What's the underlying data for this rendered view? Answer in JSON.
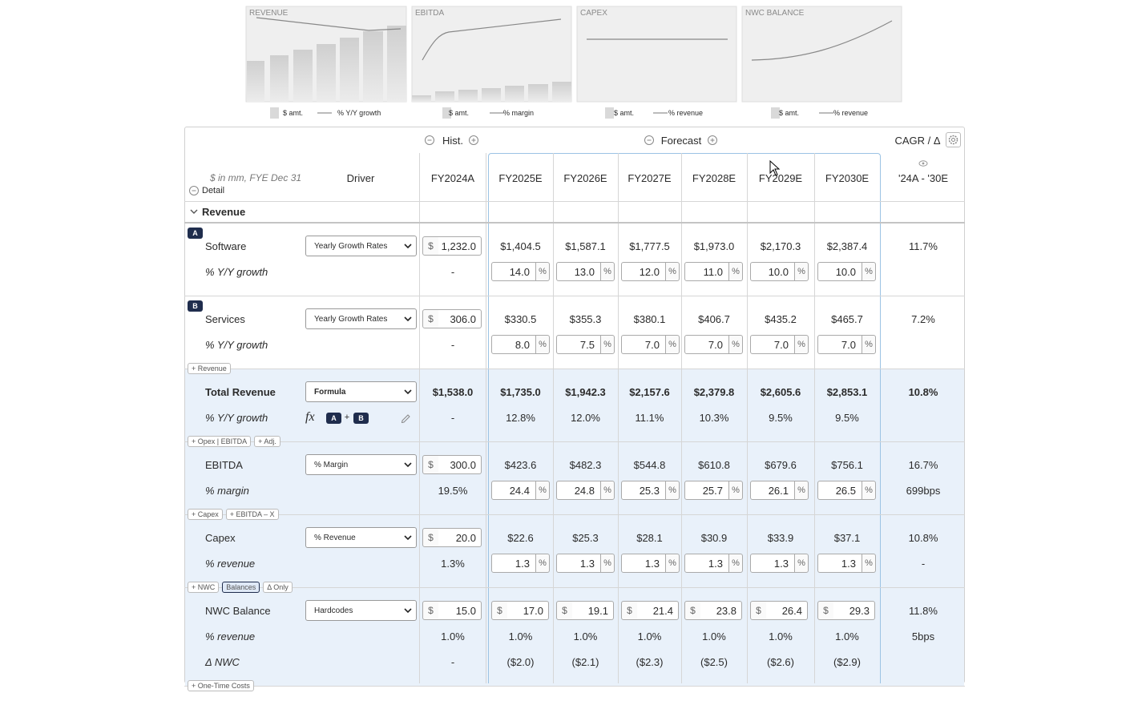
{
  "sparklines": [
    {
      "title": "REVENUE",
      "legend": [
        "$ amt.",
        "% Y/Y growth"
      ]
    },
    {
      "title": "EBITDA",
      "legend": [
        "$ amt.",
        "% margin"
      ]
    },
    {
      "title": "CAPEX",
      "legend": [
        "$ amt.",
        "% revenue"
      ]
    },
    {
      "title": "NWC BALANCE",
      "legend": [
        "$ amt.",
        "% revenue"
      ]
    }
  ],
  "header": {
    "hist": "Hist.",
    "forecast": "Forecast",
    "cagr": "CAGR / Δ",
    "units": "$ in mm, FYE Dec 31",
    "detail": "Detail",
    "driver": "Driver",
    "hist_period": "FY2024A",
    "periods": [
      "FY2025E",
      "FY2026E",
      "FY2027E",
      "FY2028E",
      "FY2029E",
      "FY2030E"
    ],
    "cagr_period": "'24A - '30E"
  },
  "symbols": {
    "currency": "$",
    "percent": "%"
  },
  "section": "Revenue",
  "blocks": [
    {
      "badge": "A",
      "shaded": false,
      "rows": [
        {
          "label": "Software",
          "driver": "Yearly Growth Rates",
          "hist": "1,232.0",
          "hist_input": true,
          "forecast": [
            "$1,404.5",
            "$1,587.1",
            "$1,777.5",
            "$1,973.0",
            "$2,170.3",
            "$2,387.4"
          ],
          "cagr": "11.7%"
        },
        {
          "label": "% Y/Y growth",
          "italic": true,
          "hist": "-",
          "forecast": [
            "14.0",
            "13.0",
            "12.0",
            "11.0",
            "10.0",
            "10.0"
          ],
          "forecast_input": "percent"
        }
      ]
    },
    {
      "badge": "B",
      "shaded": false,
      "rows": [
        {
          "label": "Services",
          "driver": "Yearly Growth Rates",
          "hist": "306.0",
          "hist_input": true,
          "forecast": [
            "$330.5",
            "$355.3",
            "$380.1",
            "$406.7",
            "$435.2",
            "$465.7"
          ],
          "cagr": "7.2%"
        },
        {
          "label": "% Y/Y growth",
          "italic": true,
          "hist": "-",
          "forecast": [
            "8.0",
            "7.5",
            "7.0",
            "7.0",
            "7.0",
            "7.0"
          ],
          "forecast_input": "percent"
        }
      ],
      "tags": [
        {
          "text": "+ Revenue"
        }
      ]
    },
    {
      "shaded": true,
      "rows": [
        {
          "label": "Total Revenue",
          "bold": true,
          "driver": "Formula",
          "hist": "$1,538.0",
          "forecast": [
            "$1,735.0",
            "$1,942.3",
            "$2,157.6",
            "$2,379.8",
            "$2,605.6",
            "$2,853.1"
          ],
          "cagr": "10.8%"
        },
        {
          "label": "% Y/Y growth",
          "italic": true,
          "formula": {
            "fx": "fx",
            "refs": [
              "A",
              "B"
            ],
            "op": "+"
          },
          "hist": "-",
          "forecast": [
            "12.8%",
            "12.0%",
            "11.1%",
            "10.3%",
            "9.5%",
            "9.5%"
          ]
        }
      ],
      "tags": [
        {
          "text": "+ Opex | EBITDA"
        },
        {
          "text": "+ Adj."
        }
      ]
    },
    {
      "shaded": true,
      "rows": [
        {
          "label": "EBITDA",
          "driver": "% Margin",
          "hist": "300.0",
          "hist_input": true,
          "forecast": [
            "$423.6",
            "$482.3",
            "$544.8",
            "$610.8",
            "$679.6",
            "$756.1"
          ],
          "cagr": "16.7%"
        },
        {
          "label": "% margin",
          "italic": true,
          "hist": "19.5%",
          "forecast": [
            "24.4",
            "24.8",
            "25.3",
            "25.7",
            "26.1",
            "26.5"
          ],
          "forecast_input": "percent",
          "cagr": "699bps"
        }
      ],
      "tags": [
        {
          "text": "+ Capex"
        },
        {
          "text": "+ EBITDA – X"
        }
      ]
    },
    {
      "shaded": true,
      "rows": [
        {
          "label": "Capex",
          "driver": "% Revenue",
          "hist": "20.0",
          "hist_input": true,
          "forecast": [
            "$22.6",
            "$25.3",
            "$28.1",
            "$30.9",
            "$33.9",
            "$37.1"
          ],
          "cagr": "10.8%"
        },
        {
          "label": "% revenue",
          "italic": true,
          "hist": "1.3%",
          "forecast": [
            "1.3",
            "1.3",
            "1.3",
            "1.3",
            "1.3",
            "1.3"
          ],
          "forecast_input": "percent",
          "cagr": "-"
        }
      ],
      "tags": [
        {
          "text": "+ NWC"
        },
        {
          "text": "Balances",
          "selected": true
        },
        {
          "text": "Δ Only"
        }
      ]
    },
    {
      "shaded": true,
      "rows": [
        {
          "label": "NWC Balance",
          "driver": "Hardcodes",
          "hist": "15.0",
          "hist_input": true,
          "forecast": [
            "17.0",
            "19.1",
            "21.4",
            "23.8",
            "26.4",
            "29.3"
          ],
          "forecast_input": "currency",
          "cagr": "11.8%"
        },
        {
          "label": "% revenue",
          "italic": true,
          "hist": "1.0%",
          "forecast": [
            "1.0%",
            "1.0%",
            "1.0%",
            "1.0%",
            "1.0%",
            "1.0%"
          ],
          "cagr": "5bps"
        },
        {
          "label": "Δ NWC",
          "italic": true,
          "hist": "-",
          "forecast": [
            "($2.0)",
            "($2.1)",
            "($2.3)",
            "($2.5)",
            "($2.6)",
            "($2.9)"
          ]
        }
      ],
      "tags": [
        {
          "text": "+ One-Time Costs"
        }
      ]
    }
  ]
}
